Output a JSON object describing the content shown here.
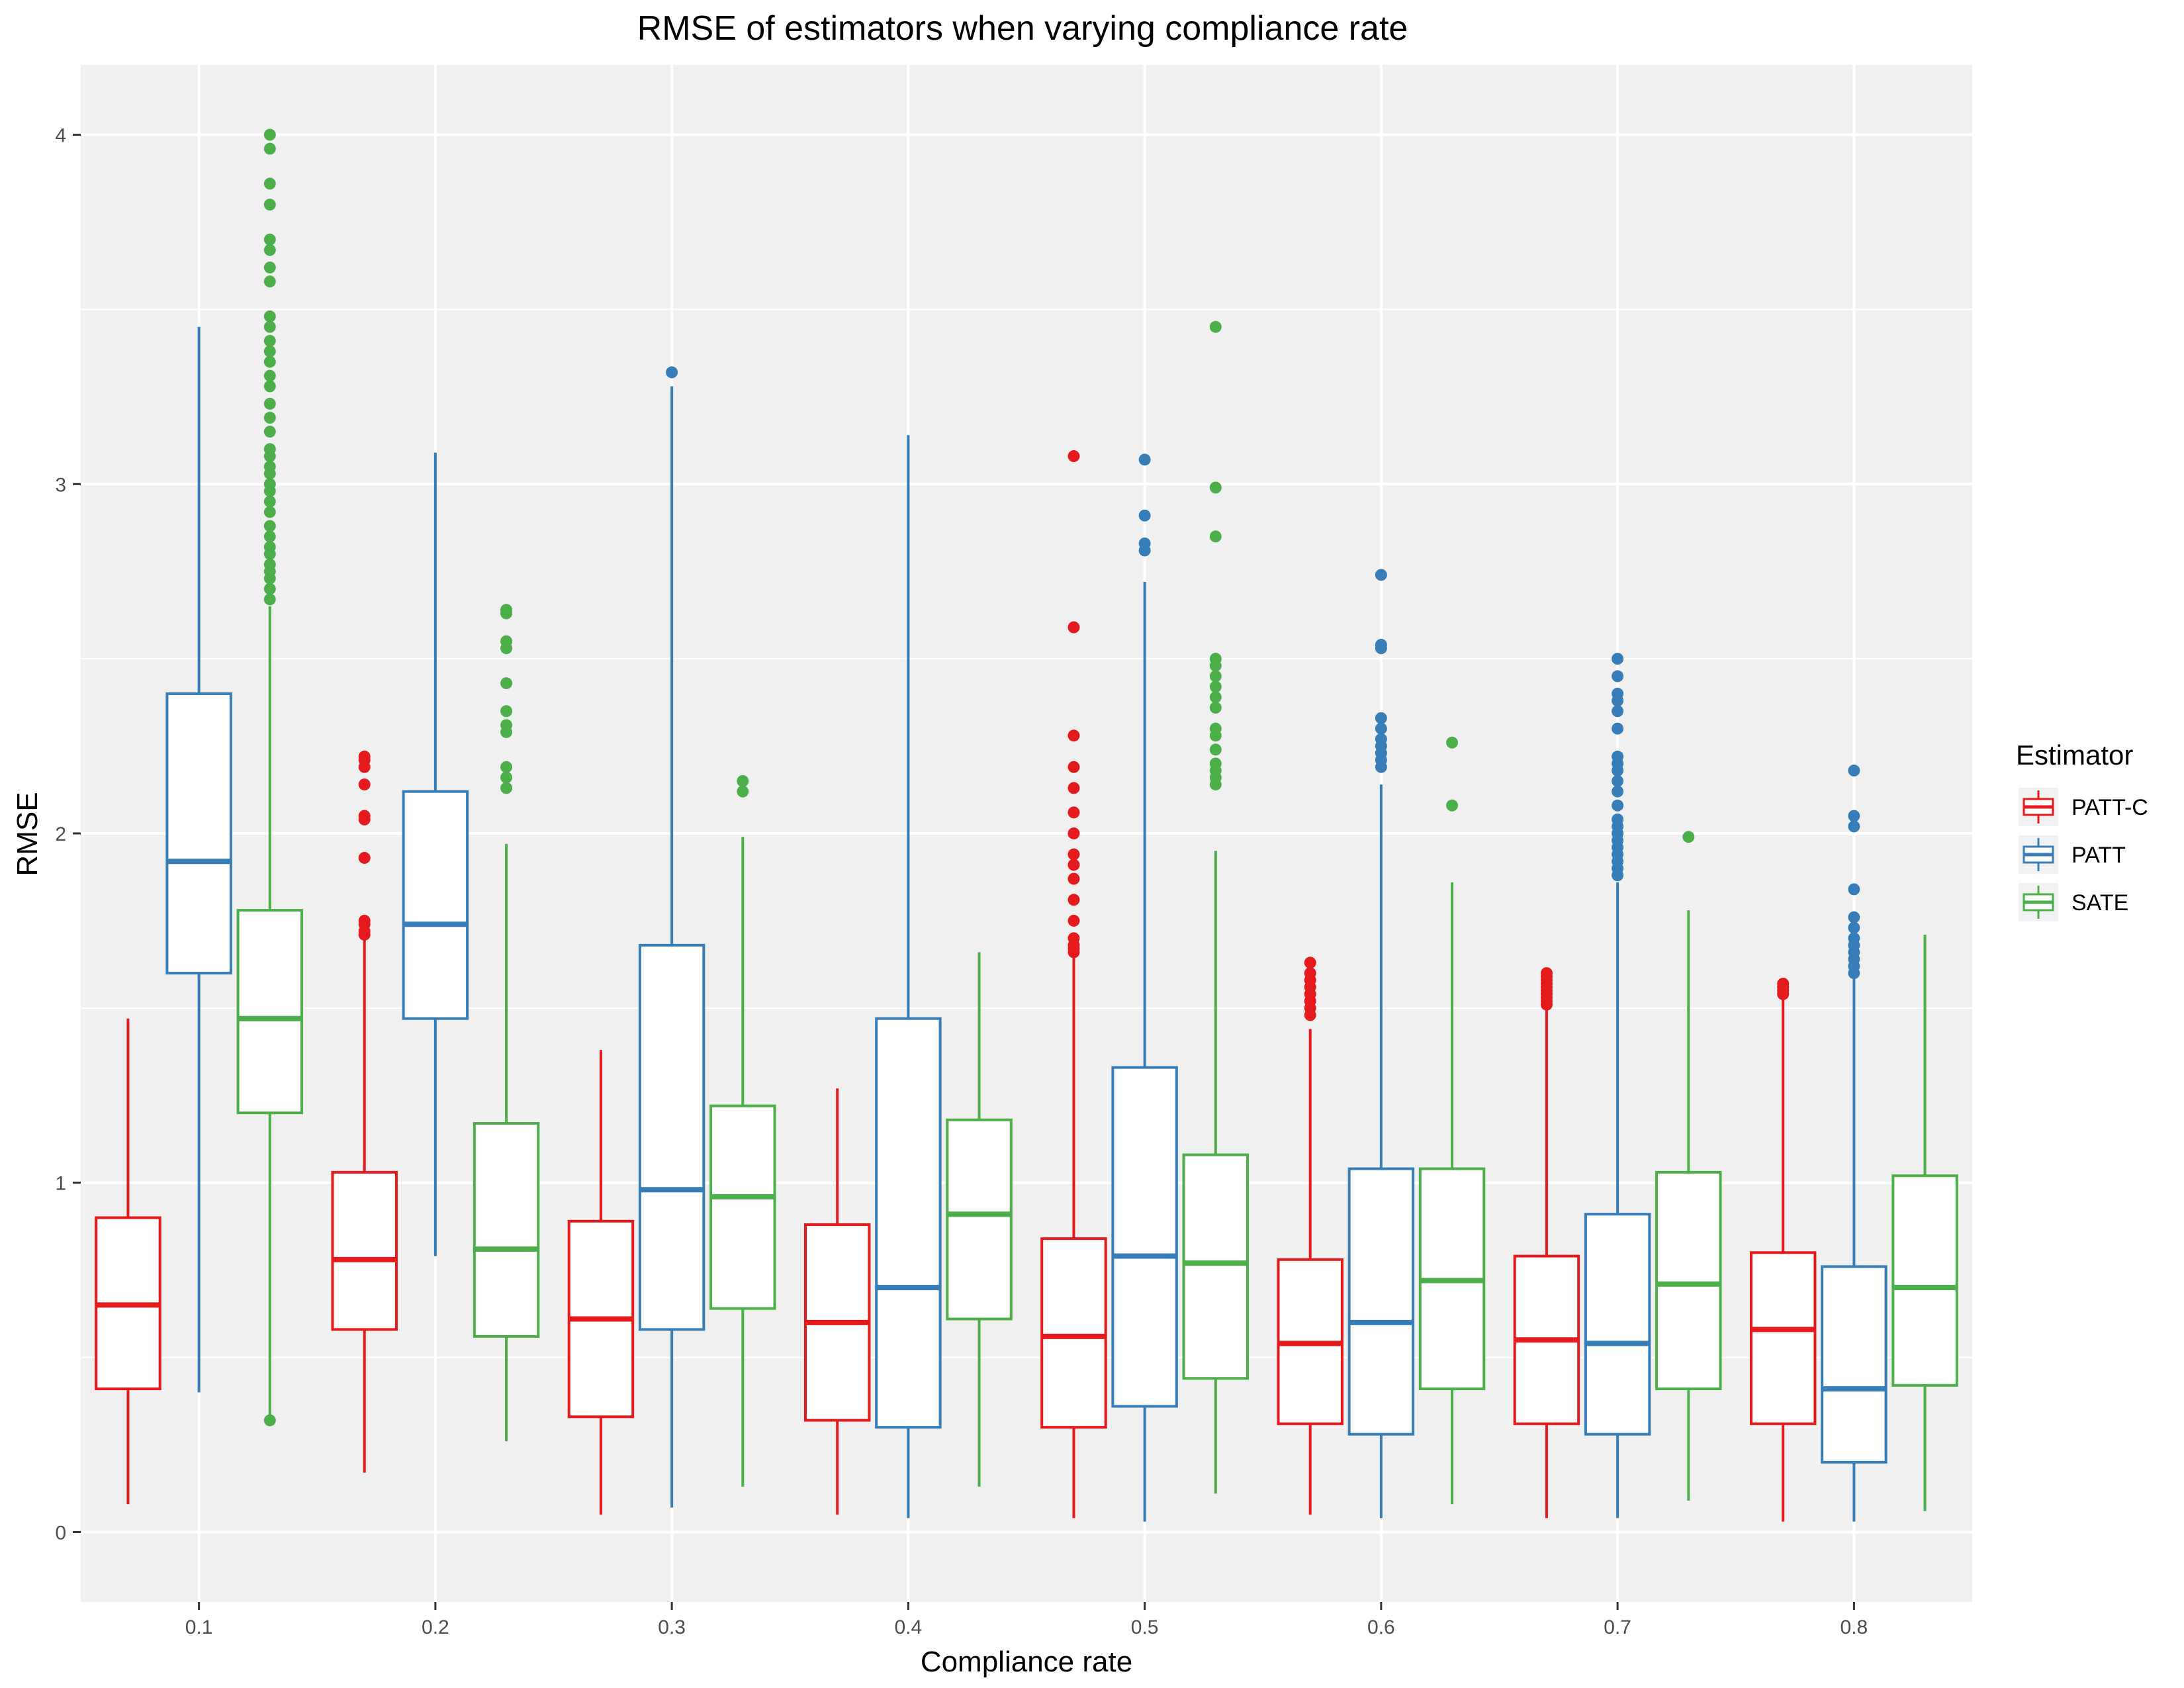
{
  "chart_data": {
    "type": "box",
    "title": "RMSE of estimators when varying compliance rate",
    "xlabel": "Compliance rate",
    "ylabel": "RMSE",
    "categories": [
      "0.1",
      "0.2",
      "0.3",
      "0.4",
      "0.5",
      "0.6",
      "0.7",
      "0.8"
    ],
    "ylim": [
      -0.2,
      4.2
    ],
    "yticks": [
      0,
      1,
      2,
      3,
      4
    ],
    "grid": true,
    "legend_title": "Estimator",
    "legend_position": "right",
    "series": [
      {
        "name": "PATT-C",
        "color": "#e41a1c",
        "boxes": [
          {
            "min": 0.08,
            "q1": 0.41,
            "median": 0.65,
            "q3": 0.9,
            "max": 1.47,
            "outliers": []
          },
          {
            "min": 0.17,
            "q1": 0.58,
            "median": 0.78,
            "q3": 1.03,
            "max": 1.7,
            "outliers": [
              1.71,
              1.72,
              1.74,
              1.75,
              1.93,
              2.04,
              2.05,
              2.14,
              2.19,
              2.21,
              2.22
            ]
          },
          {
            "min": 0.05,
            "q1": 0.33,
            "median": 0.61,
            "q3": 0.89,
            "max": 1.38,
            "outliers": []
          },
          {
            "min": 0.05,
            "q1": 0.32,
            "median": 0.6,
            "q3": 0.88,
            "max": 1.27,
            "outliers": []
          },
          {
            "min": 0.04,
            "q1": 0.3,
            "median": 0.56,
            "q3": 0.84,
            "max": 1.65,
            "outliers": [
              1.66,
              1.67,
              1.68,
              1.7,
              1.75,
              1.81,
              1.87,
              1.91,
              1.94,
              2.0,
              2.06,
              2.13,
              2.19,
              2.28,
              2.59,
              3.08
            ]
          },
          {
            "min": 0.05,
            "q1": 0.31,
            "median": 0.54,
            "q3": 0.78,
            "max": 1.44,
            "outliers": [
              1.48,
              1.5,
              1.52,
              1.54,
              1.56,
              1.58,
              1.6,
              1.63
            ]
          },
          {
            "min": 0.04,
            "q1": 0.31,
            "median": 0.55,
            "q3": 0.79,
            "max": 1.5,
            "outliers": [
              1.51,
              1.52,
              1.53,
              1.54,
              1.55,
              1.56,
              1.57,
              1.58,
              1.59,
              1.6
            ]
          },
          {
            "min": 0.03,
            "q1": 0.31,
            "median": 0.58,
            "q3": 0.8,
            "max": 1.53,
            "outliers": [
              1.54,
              1.55,
              1.56,
              1.57
            ]
          }
        ]
      },
      {
        "name": "PATT",
        "color": "#377eb8",
        "boxes": [
          {
            "min": 0.4,
            "q1": 1.6,
            "median": 1.92,
            "q3": 2.4,
            "max": 3.45,
            "outliers": []
          },
          {
            "min": 0.79,
            "q1": 1.47,
            "median": 1.74,
            "q3": 2.12,
            "max": 3.09,
            "outliers": []
          },
          {
            "min": 0.07,
            "q1": 0.58,
            "median": 0.98,
            "q3": 1.68,
            "max": 3.28,
            "outliers": [
              3.32
            ]
          },
          {
            "min": 0.04,
            "q1": 0.3,
            "median": 0.7,
            "q3": 1.47,
            "max": 3.14,
            "outliers": []
          },
          {
            "min": 0.03,
            "q1": 0.36,
            "median": 0.79,
            "q3": 1.33,
            "max": 2.72,
            "outliers": [
              2.81,
              2.83,
              2.91,
              3.07
            ]
          },
          {
            "min": 0.04,
            "q1": 0.28,
            "median": 0.6,
            "q3": 1.04,
            "max": 2.14,
            "outliers": [
              2.19,
              2.21,
              2.23,
              2.25,
              2.27,
              2.3,
              2.33,
              2.53,
              2.54,
              2.74
            ]
          },
          {
            "min": 0.04,
            "q1": 0.28,
            "median": 0.54,
            "q3": 0.91,
            "max": 1.86,
            "outliers": [
              1.88,
              1.9,
              1.92,
              1.94,
              1.96,
              1.98,
              2.0,
              2.02,
              2.04,
              2.08,
              2.12,
              2.15,
              2.18,
              2.2,
              2.22,
              2.3,
              2.35,
              2.38,
              2.4,
              2.45,
              2.5
            ]
          },
          {
            "min": 0.03,
            "q1": 0.2,
            "median": 0.41,
            "q3": 0.76,
            "max": 1.59,
            "outliers": [
              1.6,
              1.62,
              1.64,
              1.66,
              1.68,
              1.7,
              1.73,
              1.76,
              1.84,
              2.02,
              2.05,
              2.18
            ]
          }
        ]
      },
      {
        "name": "SATE",
        "color": "#4daf4a",
        "boxes": [
          {
            "min": 0.33,
            "q1": 1.2,
            "median": 1.47,
            "q3": 1.78,
            "max": 2.65,
            "outliers": [
              0.32,
              2.67,
              2.7,
              2.73,
              2.75,
              2.77,
              2.8,
              2.82,
              2.85,
              2.88,
              2.92,
              2.95,
              2.98,
              3.0,
              3.03,
              3.05,
              3.08,
              3.1,
              3.15,
              3.19,
              3.23,
              3.28,
              3.31,
              3.35,
              3.38,
              3.41,
              3.45,
              3.48,
              3.58,
              3.62,
              3.67,
              3.7,
              3.8,
              3.86,
              3.96,
              4.0
            ]
          },
          {
            "min": 0.26,
            "q1": 0.56,
            "median": 0.81,
            "q3": 1.17,
            "max": 1.97,
            "outliers": [
              2.13,
              2.16,
              2.19,
              2.29,
              2.31,
              2.35,
              2.43,
              2.53,
              2.55,
              2.63,
              2.64
            ]
          },
          {
            "min": 0.13,
            "q1": 0.64,
            "median": 0.96,
            "q3": 1.22,
            "max": 1.99,
            "outliers": [
              2.12,
              2.15
            ]
          },
          {
            "min": 0.13,
            "q1": 0.61,
            "median": 0.91,
            "q3": 1.18,
            "max": 1.66,
            "outliers": []
          },
          {
            "min": 0.11,
            "q1": 0.44,
            "median": 0.77,
            "q3": 1.08,
            "max": 1.95,
            "outliers": [
              2.14,
              2.16,
              2.18,
              2.2,
              2.24,
              2.28,
              2.3,
              2.36,
              2.39,
              2.42,
              2.45,
              2.48,
              2.5,
              2.85,
              2.99,
              3.45
            ]
          },
          {
            "min": 0.08,
            "q1": 0.41,
            "median": 0.72,
            "q3": 1.04,
            "max": 1.86,
            "outliers": [
              2.08,
              2.26
            ]
          },
          {
            "min": 0.09,
            "q1": 0.41,
            "median": 0.71,
            "q3": 1.03,
            "max": 1.78,
            "outliers": [
              1.99
            ]
          },
          {
            "min": 0.06,
            "q1": 0.42,
            "median": 0.7,
            "q3": 1.02,
            "max": 1.71,
            "outliers": []
          }
        ]
      }
    ]
  }
}
